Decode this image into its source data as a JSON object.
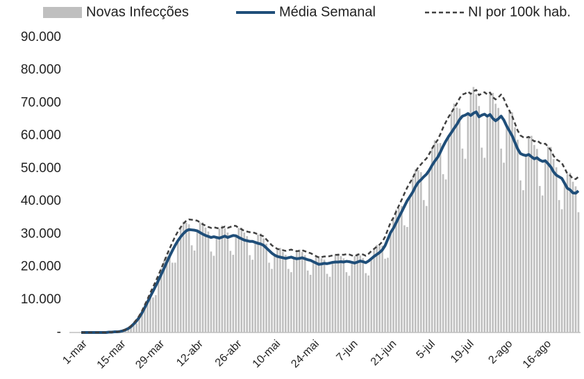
{
  "chart_data": {
    "type": "combo",
    "categories": [
      "1-mar",
      null,
      null,
      null,
      null,
      null,
      null,
      null,
      null,
      null,
      null,
      null,
      null,
      null,
      "15-mar",
      null,
      null,
      null,
      null,
      null,
      null,
      null,
      null,
      null,
      null,
      null,
      null,
      null,
      "29-mar",
      null,
      null,
      null,
      null,
      null,
      null,
      null,
      null,
      null,
      null,
      null,
      null,
      null,
      "12-abr",
      null,
      null,
      null,
      null,
      null,
      null,
      null,
      null,
      null,
      null,
      null,
      null,
      null,
      "26-abr",
      null,
      null,
      null,
      null,
      null,
      null,
      null,
      null,
      null,
      null,
      null,
      null,
      null,
      "10-mai",
      null,
      null,
      null,
      null,
      null,
      null,
      null,
      null,
      null,
      null,
      null,
      null,
      null,
      "24-mai",
      null,
      null,
      null,
      null,
      null,
      null,
      null,
      null,
      null,
      null,
      null,
      null,
      null,
      "7-jun",
      null,
      null,
      null,
      null,
      null,
      null,
      null,
      null,
      null,
      null,
      null,
      null,
      null,
      "21-jun",
      null,
      null,
      null,
      null,
      null,
      null,
      null,
      null,
      null,
      null,
      null,
      null,
      null,
      "5-jul",
      null,
      null,
      null,
      null,
      null,
      null,
      null,
      null,
      null,
      null,
      null,
      null,
      null,
      "19-jul",
      null,
      null,
      null,
      null,
      null,
      null,
      null,
      null,
      null,
      null,
      null,
      null,
      null,
      "2-ago",
      null,
      null,
      null,
      null,
      null,
      null,
      null,
      null,
      null,
      null,
      null,
      null,
      null,
      "16-ago",
      null,
      null,
      null,
      null,
      null,
      null,
      null,
      null,
      null,
      null,
      null,
      null
    ],
    "series": [
      {
        "name": "Novas Infecções",
        "type": "bar",
        "color": "#bfbfbf",
        "values": [
          0,
          0,
          0,
          0,
          0,
          0,
          0,
          0,
          0,
          0,
          100,
          100,
          200,
          200,
          300,
          600,
          900,
          1300,
          1900,
          2200,
          2800,
          4600,
          6600,
          8500,
          10000,
          11600,
          10700,
          11400,
          16000,
          19600,
          22000,
          23200,
          24500,
          21300,
          21300,
          28000,
          32100,
          33800,
          33500,
          33000,
          26600,
          25000,
          31000,
          33600,
          33600,
          32000,
          30800,
          24700,
          23400,
          29000,
          31700,
          32600,
          31800,
          30500,
          24900,
          23700,
          29500,
          31900,
          32000,
          30500,
          29400,
          23600,
          22200,
          27500,
          29900,
          30200,
          28700,
          27100,
          21300,
          19400,
          23600,
          25500,
          25800,
          24600,
          23700,
          19400,
          18400,
          22700,
          24800,
          25300,
          24600,
          23600,
          18900,
          17600,
          21600,
          23300,
          23300,
          22600,
          22200,
          17900,
          17000,
          21400,
          23700,
          24100,
          23300,
          22600,
          18400,
          17300,
          21400,
          23300,
          24100,
          23500,
          22700,
          18100,
          17400,
          22500,
          25500,
          26700,
          26400,
          26500,
          22500,
          22800,
          30500,
          35000,
          37500,
          38000,
          38600,
          32700,
          32200,
          41500,
          47100,
          49800,
          49500,
          48900,
          40400,
          38600,
          49500,
          56100,
          58600,
          57700,
          57800,
          48300,
          46700,
          59800,
          67100,
          69800,
          68600,
          68300,
          56100,
          53000,
          66800,
          72800,
          74900,
          72700,
          69100,
          56400,
          53300,
          66000,
          73200,
          73100,
          69800,
          68500,
          56100,
          51800,
          63000,
          67700,
          67200,
          62600,
          58800,
          46400,
          43400,
          54000,
          59700,
          60000,
          57200,
          56000,
          44700,
          41800,
          52400,
          56700,
          56600,
          52900,
          50400,
          40400,
          37600,
          45500,
          48400,
          48700,
          46000,
          44600,
          36700
        ]
      },
      {
        "name": "Média Semanal",
        "type": "line",
        "color": "#1f4e79",
        "values": [
          0,
          0,
          0,
          0,
          0,
          0,
          0,
          0,
          0,
          0,
          100,
          100,
          200,
          200,
          300,
          500,
          800,
          1200,
          1800,
          2600,
          3500,
          4600,
          6000,
          7600,
          9300,
          11000,
          12600,
          14300,
          16000,
          17800,
          19600,
          21500,
          23300,
          25000,
          26600,
          28000,
          29200,
          30200,
          31000,
          31400,
          31300,
          31200,
          31000,
          30500,
          30000,
          29600,
          29300,
          29000,
          29200,
          29000,
          28800,
          29100,
          29400,
          29000,
          29300,
          29600,
          29500,
          29000,
          28600,
          28200,
          28000,
          27800,
          27800,
          27500,
          27200,
          27000,
          26600,
          25800,
          25000,
          24200,
          23600,
          23200,
          23000,
          22800,
          22600,
          22800,
          23000,
          22700,
          22500,
          22600,
          22800,
          22500,
          22200,
          22000,
          21600,
          21200,
          20800,
          20900,
          21100,
          21000,
          21200,
          21400,
          21500,
          21500,
          21600,
          21500,
          21700,
          21600,
          21400,
          21200,
          21500,
          21800,
          21600,
          21300,
          21800,
          22500,
          23200,
          23800,
          24400,
          25200,
          26500,
          28500,
          30500,
          31800,
          33500,
          35200,
          36800,
          38500,
          40200,
          41500,
          42800,
          44500,
          45800,
          46600,
          47500,
          48300,
          49500,
          51000,
          52300,
          53400,
          55000,
          56800,
          58400,
          59800,
          61000,
          62300,
          63500,
          65000,
          66000,
          66300,
          66800,
          66200,
          66900,
          67300,
          65800,
          66300,
          66600,
          66000,
          66500,
          65300,
          64600,
          65200,
          66000,
          64800,
          63000,
          61500,
          60000,
          58000,
          56000,
          54600,
          54200,
          54000,
          54300,
          53600,
          53000,
          53300,
          52600,
          52200,
          52400,
          51500,
          50500,
          49000,
          48000,
          47500,
          47000,
          45500,
          44000,
          43500,
          42600,
          42500,
          43200
        ]
      },
      {
        "name": "NI por 100k hab.",
        "type": "line",
        "dashed": true,
        "color": "#404040",
        "values": [
          0,
          0,
          0,
          0,
          0,
          0,
          0,
          0,
          0,
          0,
          100,
          100,
          200,
          200,
          300,
          600,
          900,
          1300,
          2000,
          2900,
          3900,
          5100,
          6600,
          8400,
          10200,
          12100,
          13900,
          15700,
          17600,
          19600,
          21600,
          23700,
          25600,
          27500,
          29300,
          30800,
          32100,
          33200,
          34100,
          34500,
          34400,
          34300,
          34100,
          33600,
          33000,
          32600,
          32200,
          31900,
          32100,
          31900,
          31700,
          32000,
          32300,
          31900,
          32200,
          32600,
          32500,
          31900,
          31500,
          31000,
          30800,
          30600,
          30600,
          30300,
          29900,
          29700,
          29300,
          28400,
          27500,
          26600,
          26000,
          25500,
          25300,
          25100,
          24900,
          25100,
          25300,
          25000,
          24800,
          24900,
          25100,
          24800,
          24400,
          24200,
          23800,
          23300,
          22900,
          23000,
          23200,
          23100,
          23300,
          23500,
          23700,
          23700,
          23800,
          23700,
          23900,
          23800,
          23500,
          23300,
          23700,
          24000,
          23800,
          23400,
          24000,
          24800,
          25500,
          26200,
          26800,
          27700,
          29200,
          31400,
          33600,
          35000,
          36900,
          38700,
          40500,
          42400,
          44200,
          45700,
          47100,
          49000,
          50400,
          51300,
          52300,
          53100,
          54500,
          56100,
          57500,
          58700,
          60500,
          62500,
          64200,
          65800,
          67100,
          68500,
          69900,
          71500,
          72600,
          72900,
          73500,
          72800,
          73600,
          74000,
          72400,
          72900,
          73300,
          72600,
          73200,
          71800,
          71100,
          71700,
          72600,
          71300,
          69300,
          67700,
          66000,
          63800,
          61600,
          60100,
          59600,
          59400,
          59700,
          59000,
          58300,
          58600,
          57900,
          57400,
          57600,
          56700,
          55600,
          53900,
          52800,
          52300,
          51700,
          50100,
          48400,
          47900,
          46900,
          46800,
          47500
        ]
      }
    ],
    "ylim": [
      0,
      90000
    ],
    "yticks": [
      {
        "value": 0,
        "label": "-"
      },
      {
        "value": 10000,
        "label": "10.000"
      },
      {
        "value": 20000,
        "label": "20.000"
      },
      {
        "value": 30000,
        "label": "30.000"
      },
      {
        "value": 40000,
        "label": "40.000"
      },
      {
        "value": 50000,
        "label": "50.000"
      },
      {
        "value": 60000,
        "label": "60.000"
      },
      {
        "value": 70000,
        "label": "70.000"
      },
      {
        "value": 80000,
        "label": "80.000"
      },
      {
        "value": 90000,
        "label": "90.000"
      }
    ],
    "grid": false,
    "legend": "top"
  }
}
